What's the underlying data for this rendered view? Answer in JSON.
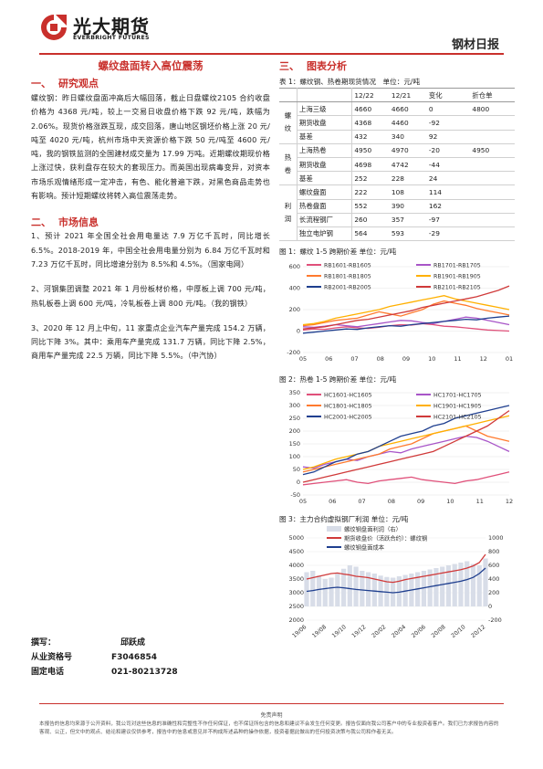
{
  "header": {
    "logo_cn": "光大期货",
    "logo_en": "EVERBRIGHT FUTURES",
    "report_title": "钢材日报",
    "logo_color": "#c9302c"
  },
  "doc_title": "螺纹盘面转入高位震荡",
  "section1": {
    "num": "一、",
    "title": "研究观点",
    "text": "螺纹钢：昨日螺纹盘面冲高后大幅回落，截止日盘螺纹2105 合约收盘价格为 4368 元/吨，较上一交易日收盘价格下跌 92 元/吨，跌幅为 2.06%。现货价格涨跌互现，成交回落，唐山地区钢坯价格上涨 20 元/吨至 4020 元/吨，杭州市场中天资源价格下跌 50 元/吨至 4600 元/吨，我的钢铁监测的全国建材成交量为 17.99 万吨。近期螺纹期现价格上涨过快，获利盘存在较大的套现压力。而英国出现病毒变异，对资本市场乐观情绪形成一定冲击，有色、能化普遍下跌，对黑色商品走势也有影响。预计短期螺纹将转入高位震荡走势。"
  },
  "section2": {
    "num": "二、",
    "title": "市场信息",
    "items": [
      "1、预计 2021 年全国全社会用电量达 7.9 万亿千瓦时，同比增长 6.5%。2018-2019 年，中国全社会用电量分别为 6.84 万亿千瓦时和 7.23 万亿千瓦时，同比增速分别为 8.5%和 4.5%。（国家电网）",
      "2、河钢集团调整 2021 年 1 月份板材价格，中厚板上调 700 元/吨，热轧板卷上调 600 元/吨，冷轧板卷上调 800 元/吨。（我的钢铁）",
      "3、2020 年 12 月上中旬，11 家重点企业汽车产量完成 154.2 万辆，同比下降 3%。其中：乘用车产量完成 131.7 万辆，同比下降 2.5%，商用车产量完成 22.5 万辆，同比下降 5.5%。（中汽协）"
    ]
  },
  "section3": {
    "num": "三、",
    "title": "图表分析"
  },
  "table1": {
    "caption": "表 1：螺纹钢、热卷期现货情况　单位：元/吨",
    "headers": [
      "",
      "",
      "12/22",
      "12/21",
      "变化",
      "折仓单"
    ],
    "groups": [
      {
        "label": "螺纹",
        "rows": [
          [
            "上海三级",
            "4660",
            "4660",
            "0",
            "4800"
          ],
          [
            "期货收盘",
            "4368",
            "4460",
            "-92",
            ""
          ],
          [
            "基差",
            "432",
            "340",
            "92",
            ""
          ]
        ]
      },
      {
        "label": "热卷",
        "rows": [
          [
            "上海热卷",
            "4950",
            "4970",
            "-20",
            "4950"
          ],
          [
            "期货收盘",
            "4698",
            "4742",
            "-44",
            ""
          ],
          [
            "基差",
            "252",
            "228",
            "24",
            ""
          ]
        ]
      },
      {
        "label": "利润",
        "rows": [
          [
            "螺纹盘面",
            "222",
            "108",
            "114",
            ""
          ],
          [
            "热卷盘面",
            "552",
            "390",
            "162",
            ""
          ],
          [
            "长流程钢厂",
            "260",
            "357",
            "-97",
            ""
          ],
          [
            "独立电炉钢",
            "564",
            "593",
            "-29",
            ""
          ]
        ]
      }
    ]
  },
  "chart_data": [
    {
      "type": "line",
      "caption": "图 1：螺纹 1-5 跨期价差 单位：元/吨",
      "x_tick_labels": [
        "05",
        "06",
        "07",
        "08",
        "09",
        "10",
        "11",
        "12",
        "01"
      ],
      "y_tick_labels": [
        "600",
        "400",
        "200",
        "0",
        "-200"
      ],
      "ylim": [
        -200,
        600
      ],
      "legend": "top",
      "series": [
        {
          "name": "RB1601-RB1605",
          "color": "#e0507a",
          "values": [
            10,
            20,
            15,
            30,
            40,
            30,
            25,
            35,
            50,
            60,
            55,
            70,
            60,
            45,
            40,
            30,
            20,
            10,
            5,
            0
          ]
        },
        {
          "name": "RB1701-RB1705",
          "color": "#a855c8",
          "values": [
            40,
            35,
            45,
            60,
            50,
            40,
            55,
            70,
            85,
            100,
            95,
            80,
            70,
            90,
            110,
            130,
            120,
            100,
            80,
            60
          ]
        },
        {
          "name": "RB1801-RB1805",
          "color": "#ff7a2e",
          "values": [
            50,
            60,
            80,
            100,
            110,
            120,
            150,
            180,
            160,
            140,
            170,
            200,
            250,
            280,
            260,
            240,
            210,
            190,
            170,
            150
          ]
        },
        {
          "name": "RB1901-RB1905",
          "color": "#ffb000",
          "values": [
            60,
            70,
            90,
            120,
            140,
            160,
            180,
            200,
            230,
            250,
            270,
            290,
            310,
            330,
            300,
            280,
            260,
            240,
            220,
            200
          ]
        },
        {
          "name": "RB2001-RB2005",
          "color": "#1f3f8f",
          "values": [
            -20,
            -10,
            0,
            10,
            20,
            15,
            30,
            40,
            50,
            45,
            60,
            70,
            80,
            90,
            100,
            110,
            105,
            120,
            130,
            140
          ]
        },
        {
          "name": "RB2101-RB2105",
          "color": "#d03a3a",
          "values": [
            20,
            30,
            40,
            60,
            80,
            100,
            110,
            130,
            150,
            170,
            190,
            220,
            240,
            260,
            280,
            300,
            320,
            350,
            380,
            420
          ]
        }
      ]
    },
    {
      "type": "line",
      "caption": "图 2：热卷 1-5 跨期价差 单位：元/吨",
      "x_tick_labels": [
        "05",
        "06",
        "07",
        "08",
        "09",
        "10",
        "11",
        "12"
      ],
      "y_tick_labels": [
        "350",
        "300",
        "250",
        "200",
        "150",
        "100",
        "50",
        "0",
        "-50"
      ],
      "ylim": [
        -50,
        350
      ],
      "legend": "top",
      "series": [
        {
          "name": "HC1601-HC1605",
          "color": "#e0507a",
          "values": [
            -10,
            -5,
            0,
            5,
            10,
            0,
            -5,
            5,
            10,
            15,
            20,
            10,
            5,
            0,
            -5,
            5,
            10,
            20,
            30,
            40
          ]
        },
        {
          "name": "HC1701-HC1705",
          "color": "#a855c8",
          "values": [
            60,
            55,
            70,
            80,
            90,
            85,
            100,
            110,
            120,
            115,
            130,
            140,
            150,
            160,
            170,
            180,
            175,
            160,
            140,
            120
          ]
        },
        {
          "name": "HC1801-HC1805",
          "color": "#ff7a2e",
          "values": [
            40,
            50,
            60,
            70,
            80,
            90,
            100,
            110,
            130,
            140,
            150,
            170,
            190,
            200,
            210,
            220,
            200,
            180,
            170,
            160
          ]
        },
        {
          "name": "HC1901-HC1905",
          "color": "#ffb000",
          "values": [
            50,
            60,
            75,
            90,
            100,
            110,
            120,
            140,
            150,
            160,
            170,
            180,
            190,
            200,
            210,
            220,
            230,
            240,
            250,
            260
          ]
        },
        {
          "name": "HC2001-HC2005",
          "color": "#1f3f8f",
          "values": [
            30,
            40,
            60,
            80,
            90,
            110,
            120,
            140,
            160,
            180,
            190,
            200,
            220,
            230,
            250,
            260,
            270,
            280,
            290,
            300
          ]
        },
        {
          "name": "HC2101-HC2105",
          "color": "#d03a3a",
          "values": [
            0,
            10,
            20,
            30,
            40,
            50,
            60,
            70,
            80,
            90,
            100,
            110,
            120,
            140,
            160,
            180,
            200,
            220,
            250,
            280
          ]
        }
      ]
    },
    {
      "type": "line",
      "caption": "图 3：主力合约虚拟钢厂利润 单位：元/吨",
      "x_tick_labels": [
        "19/06",
        "19/08",
        "19/10",
        "19/12",
        "20/02",
        "20/04",
        "20/06",
        "20/08",
        "20/10",
        "20/12"
      ],
      "y_left_tick_labels": [
        "5000",
        "4500",
        "4000",
        "3500",
        "3000",
        "2500",
        "2000"
      ],
      "y_right_tick_labels": [
        "1000",
        "800",
        "600",
        "400",
        "200",
        "0",
        "-200"
      ],
      "ylim_left": [
        2000,
        5000
      ],
      "ylim_right": [
        -200,
        1000
      ],
      "legend": "top",
      "series": [
        {
          "name": "螺纹钢盘面利润（右）",
          "color": "#d8dde8",
          "axis": "right",
          "style": "area",
          "values": [
            500,
            520,
            450,
            400,
            420,
            480,
            550,
            600,
            580,
            520,
            500,
            480,
            450,
            430,
            420,
            440,
            460,
            480,
            500,
            520,
            540,
            560,
            580,
            600,
            620,
            640,
            660,
            620,
            600,
            700
          ]
        },
        {
          "name": "期货收盘价（活跃合约）：螺纹钢",
          "color": "#d03a3a",
          "axis": "left",
          "values": [
            3500,
            3550,
            3600,
            3650,
            3700,
            3720,
            3680,
            3650,
            3600,
            3580,
            3550,
            3500,
            3450,
            3400,
            3380,
            3420,
            3480,
            3520,
            3560,
            3600,
            3640,
            3680,
            3720,
            3760,
            3800,
            3840,
            3900,
            3980,
            4100,
            4400
          ]
        },
        {
          "name": "螺纹钢盘面成本",
          "color": "#1f3f8f",
          "axis": "left",
          "values": [
            3050,
            3080,
            3120,
            3150,
            3180,
            3200,
            3180,
            3150,
            3120,
            3100,
            3080,
            3060,
            3040,
            3020,
            3000,
            3020,
            3060,
            3100,
            3140,
            3180,
            3220,
            3260,
            3300,
            3340,
            3380,
            3420,
            3480,
            3560,
            3700,
            3900
          ]
        }
      ]
    }
  ],
  "author": {
    "writer_label": "撰写：",
    "writer_name": "邱跃成",
    "cert_label": "从业资格号",
    "cert_value": "F3046854",
    "phone_label": "固定电话",
    "phone_value": "021-80213728"
  },
  "disclaimer": {
    "title": "免责声明",
    "text": "本报告的信息均来源于公开资料，我公司对这些信息的准确性和完整性不作任何保证，也不保证所包含的信息和建议不会发生任何变更。报告仅面向我公司客户中的专业投资者客户。我们已力求报告内容的客观、公正，但文中的观点、结论和建议仅供参考，报告中的信息或意见并不构成所述品种的操作依据，投资者据此做出的任何投资决策与我公司和作者无关。"
  }
}
